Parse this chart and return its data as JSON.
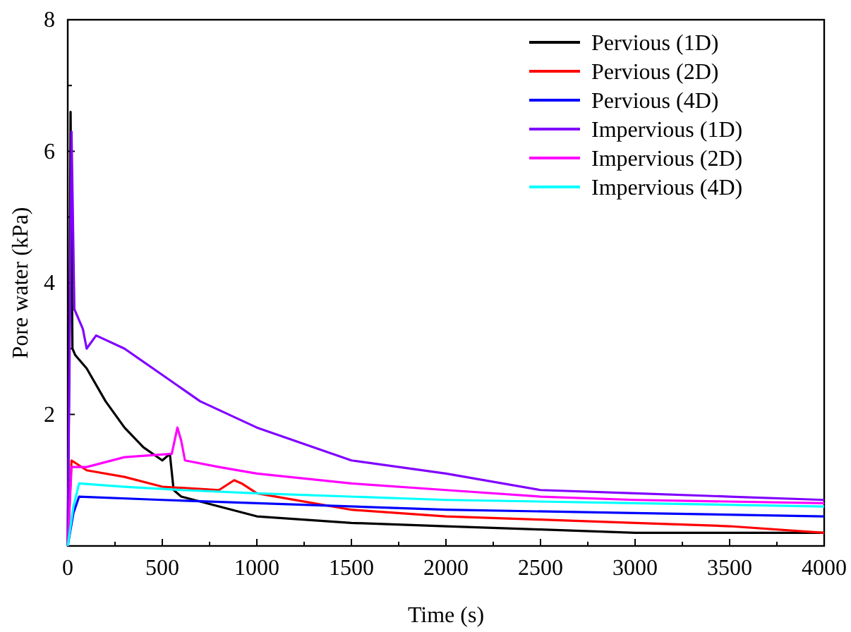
{
  "chart_data": {
    "type": "line",
    "xlabel": "Time (s)",
    "ylabel": "Pore water (kPa)",
    "xlim": [
      0,
      4000
    ],
    "ylim": [
      0,
      8
    ],
    "xticks": [
      0,
      {
        "value": 250,
        "label": null
      },
      500,
      {
        "value": 750,
        "label": null
      },
      1000,
      {
        "value": 1250,
        "label": null
      },
      1500,
      {
        "value": 1750,
        "label": null
      },
      2000,
      {
        "value": 2250,
        "label": null
      },
      2500,
      {
        "value": 2750,
        "label": null
      },
      3000,
      {
        "value": 3250,
        "label": null
      },
      3500,
      {
        "value": 3750,
        "label": null
      },
      4000
    ],
    "yticks": [
      {
        "value": 0,
        "label": null
      },
      {
        "value": 1,
        "label": null
      },
      2,
      {
        "value": 3,
        "label": null
      },
      4,
      {
        "value": 5,
        "label": null
      },
      6,
      {
        "value": 7,
        "label": null
      },
      8
    ],
    "grid": false,
    "legend": "top right",
    "marker": "none",
    "line_style": "solid",
    "series": [
      {
        "name": "Pervious (1D)",
        "color": "#000000",
        "x": [
          0,
          10,
          15,
          25,
          40,
          100,
          200,
          300,
          400,
          500,
          540,
          560,
          600,
          800,
          1000,
          1500,
          2000,
          2500,
          3000,
          3500,
          4000
        ],
        "values": [
          0,
          3.5,
          6.6,
          3.0,
          2.9,
          2.7,
          2.2,
          1.8,
          1.5,
          1.3,
          1.4,
          0.85,
          0.75,
          0.6,
          0.45,
          0.35,
          0.3,
          0.25,
          0.2,
          0.2,
          0.2
        ]
      },
      {
        "name": "Pervious (2D)",
        "color": "#ff0000",
        "x": [
          0,
          20,
          100,
          300,
          500,
          800,
          880,
          920,
          1000,
          1500,
          2000,
          2500,
          3000,
          3500,
          4000
        ],
        "values": [
          0,
          1.3,
          1.15,
          1.05,
          0.9,
          0.85,
          1.0,
          0.95,
          0.8,
          0.55,
          0.45,
          0.4,
          0.35,
          0.3,
          0.2
        ]
      },
      {
        "name": "Pervious (4D)",
        "color": "#0000ff",
        "x": [
          0,
          30,
          60,
          500,
          1000,
          2000,
          3000,
          4000
        ],
        "values": [
          0,
          0.5,
          0.75,
          0.7,
          0.65,
          0.55,
          0.5,
          0.45
        ]
      },
      {
        "name": "Impervious (1D)",
        "color": "#8000ff",
        "x": [
          0,
          10,
          20,
          35,
          50,
          80,
          100,
          150,
          300,
          500,
          700,
          1000,
          1500,
          2000,
          2500,
          3000,
          3500,
          4000
        ],
        "values": [
          0,
          3.0,
          6.3,
          3.6,
          3.5,
          3.3,
          3.0,
          3.2,
          3.0,
          2.6,
          2.2,
          1.8,
          1.3,
          1.1,
          0.85,
          0.8,
          0.75,
          0.7
        ]
      },
      {
        "name": "Impervious (2D)",
        "color": "#ff00ff",
        "x": [
          0,
          20,
          100,
          300,
          550,
          580,
          600,
          620,
          800,
          1000,
          1500,
          2000,
          2500,
          3000,
          4000
        ],
        "values": [
          0,
          1.2,
          1.2,
          1.35,
          1.4,
          1.8,
          1.6,
          1.3,
          1.2,
          1.1,
          0.95,
          0.85,
          0.75,
          0.7,
          0.65
        ]
      },
      {
        "name": "Impervious (4D)",
        "color": "#00ffff",
        "x": [
          0,
          30,
          60,
          300,
          600,
          1000,
          2000,
          3000,
          4000
        ],
        "values": [
          0,
          0.6,
          0.95,
          0.9,
          0.85,
          0.8,
          0.7,
          0.65,
          0.6
        ]
      }
    ]
  }
}
